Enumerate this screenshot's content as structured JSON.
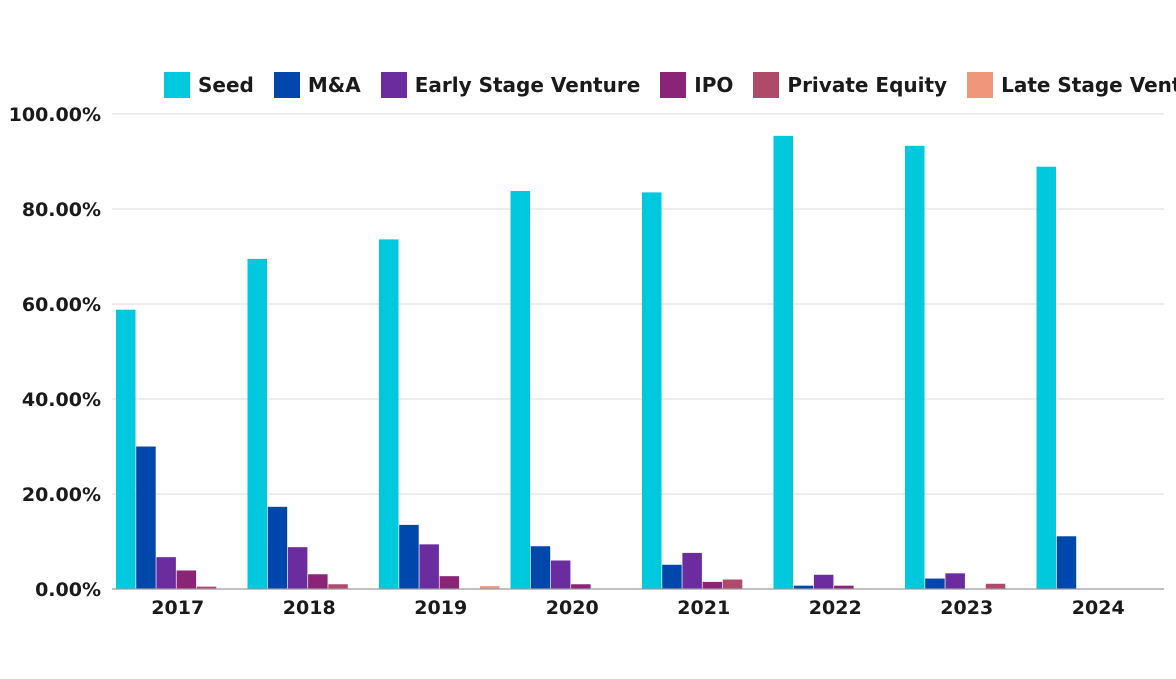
{
  "chart_data": {
    "type": "bar",
    "categories": [
      "2017",
      "2018",
      "2019",
      "2020",
      "2021",
      "2022",
      "2023",
      "2024"
    ],
    "series": [
      {
        "name": "Seed",
        "color": "#00C9DE",
        "values": [
          58.8,
          69.5,
          73.6,
          83.8,
          83.5,
          95.4,
          93.3,
          88.9
        ]
      },
      {
        "name": "M&A",
        "color": "#0047AB",
        "values": [
          30.0,
          17.3,
          13.5,
          9.0,
          5.1,
          0.7,
          2.2,
          11.1
        ]
      },
      {
        "name": "Early Stage Venture",
        "color": "#6A2C9E",
        "values": [
          6.7,
          8.8,
          9.4,
          6.0,
          7.6,
          3.0,
          3.3,
          0
        ]
      },
      {
        "name": "IPO",
        "color": "#8B2377",
        "values": [
          3.9,
          3.1,
          2.7,
          1.0,
          1.5,
          0.7,
          0,
          0
        ]
      },
      {
        "name": "Private Equity",
        "color": "#B04A6B",
        "values": [
          0.5,
          1.0,
          0,
          0,
          2.0,
          0,
          1.1,
          0
        ]
      },
      {
        "name": "Late Stage Venture",
        "color": "#F0967A",
        "values": [
          0,
          0,
          0.6,
          0,
          0,
          0,
          0,
          0
        ]
      }
    ],
    "y_ticks": [
      "0.00%",
      "20.00%",
      "40.00%",
      "60.00%",
      "80.00%",
      "100.00%"
    ],
    "ylim": [
      0,
      100
    ],
    "grid": true,
    "legend_position": "top",
    "title": "",
    "xlabel": "",
    "ylabel": ""
  }
}
